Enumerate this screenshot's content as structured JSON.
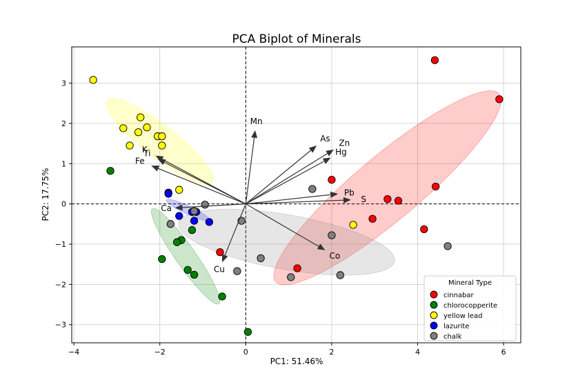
{
  "chart_data": {
    "type": "scatter",
    "title": "PCA Biplot of Minerals",
    "xlabel": "PC1: 51.46%",
    "ylabel": "PC2: 17.75%",
    "xlim": [
      -4.05,
      6.4
    ],
    "ylim": [
      -3.45,
      3.9
    ],
    "xticks": [
      -4,
      -2,
      0,
      2,
      4,
      6
    ],
    "yticks": [
      -3,
      -2,
      -1,
      0,
      1,
      2,
      3
    ],
    "xtick_labels": [
      "−4",
      "−2",
      "0",
      "2",
      "4",
      "6"
    ],
    "ytick_labels": [
      "−3",
      "−2",
      "−1",
      "0",
      "1",
      "2",
      "3"
    ],
    "grid": true,
    "legend": {
      "title": "Mineral Type",
      "position": "lower-right"
    },
    "series": [
      {
        "name": "cinnabar",
        "color": "#ff0000",
        "ellipse": {
          "cx": 3.3,
          "cy": 0.4,
          "rx": 3.4,
          "ry": 0.8,
          "angle_deg": 40
        },
        "points": [
          [
            4.4,
            3.57
          ],
          [
            5.9,
            2.6
          ],
          [
            4.42,
            0.43
          ],
          [
            2.0,
            0.6
          ],
          [
            3.3,
            0.12
          ],
          [
            3.55,
            0.08
          ],
          [
            2.95,
            -0.37
          ],
          [
            4.15,
            -0.63
          ],
          [
            -0.6,
            -1.2
          ],
          [
            1.2,
            -1.6
          ]
        ]
      },
      {
        "name": "chlorocopperite",
        "color": "#008000",
        "ellipse": {
          "cx": -1.4,
          "cy": -1.3,
          "rx": 1.35,
          "ry": 0.25,
          "angle_deg": -55
        },
        "points": [
          [
            -3.15,
            0.82
          ],
          [
            -1.25,
            -0.65
          ],
          [
            -1.5,
            -0.9
          ],
          [
            -1.6,
            -0.95
          ],
          [
            -1.95,
            -1.37
          ],
          [
            -1.35,
            -1.64
          ],
          [
            -1.2,
            -1.76
          ],
          [
            -0.55,
            -2.3
          ],
          [
            0.05,
            -3.18
          ]
        ]
      },
      {
        "name": "yellow lead",
        "color": "#ffff00",
        "ellipse": {
          "cx": -2.0,
          "cy": 1.55,
          "rx": 1.55,
          "ry": 0.4,
          "angle_deg": -38
        },
        "points": [
          [
            -3.55,
            3.08
          ],
          [
            -2.45,
            2.15
          ],
          [
            -2.85,
            1.88
          ],
          [
            -2.3,
            1.9
          ],
          [
            -2.5,
            1.78
          ],
          [
            -2.05,
            1.68
          ],
          [
            -1.95,
            1.68
          ],
          [
            -2.7,
            1.45
          ],
          [
            -1.95,
            1.45
          ],
          [
            -1.55,
            0.35
          ],
          [
            2.5,
            -0.52
          ]
        ]
      },
      {
        "name": "lazurite",
        "color": "#0000ff",
        "ellipse": {
          "cx": -1.35,
          "cy": -0.15,
          "rx": 0.55,
          "ry": 0.1,
          "angle_deg": -25
        },
        "points": [
          [
            -1.8,
            0.28
          ],
          [
            -1.8,
            0.25
          ],
          [
            -1.25,
            -0.2
          ],
          [
            -1.15,
            -0.2
          ],
          [
            -1.55,
            -0.3
          ],
          [
            -1.2,
            -0.42
          ],
          [
            -0.85,
            -0.45
          ]
        ]
      },
      {
        "name": "chalk",
        "color": "#808080",
        "ellipse": {
          "cx": 0.95,
          "cy": -0.95,
          "rx": 2.55,
          "ry": 0.68,
          "angle_deg": -10
        },
        "points": [
          [
            1.55,
            0.37
          ],
          [
            -0.95,
            -0.02
          ],
          [
            -1.2,
            -0.18
          ],
          [
            -1.75,
            -0.5
          ],
          [
            -0.1,
            -0.42
          ],
          [
            2.0,
            -0.78
          ],
          [
            4.7,
            -1.05
          ],
          [
            0.35,
            -1.35
          ],
          [
            -0.2,
            -1.67
          ],
          [
            1.05,
            -1.82
          ],
          [
            2.2,
            -1.77
          ]
        ]
      }
    ],
    "loadings": [
      {
        "name": "Mn",
        "x": 0.22,
        "y": 1.83
      },
      {
        "name": "As",
        "x": 1.65,
        "y": 1.45
      },
      {
        "name": "Zn",
        "x": 2.05,
        "y": 1.35
      },
      {
        "name": "Hg",
        "x": 1.98,
        "y": 1.15
      },
      {
        "name": "K",
        "x": -2.1,
        "y": 1.2
      },
      {
        "name": "Ti",
        "x": -2.05,
        "y": 1.12
      },
      {
        "name": "Fe",
        "x": -2.2,
        "y": 0.95
      },
      {
        "name": "Ca",
        "x": -1.65,
        "y": -0.1
      },
      {
        "name": "Pb",
        "x": 2.15,
        "y": 0.25
      },
      {
        "name": "S",
        "x": 2.45,
        "y": 0.1
      },
      {
        "name": "Cu",
        "x": -0.55,
        "y": -1.45
      },
      {
        "name": "Co",
        "x": 1.85,
        "y": -1.15
      }
    ]
  }
}
